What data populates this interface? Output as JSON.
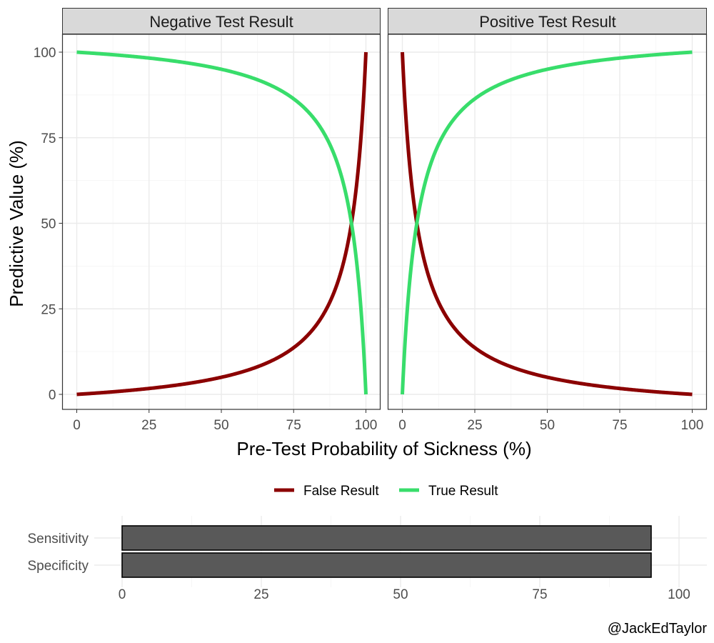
{
  "chart_data": [
    {
      "type": "line",
      "panels": [
        {
          "title": "Negative Test Result"
        },
        {
          "title": "Positive Test Result"
        }
      ],
      "xlabel": "Pre-Test Probability of Sickness (%)",
      "ylabel": "Predictive Value (%)",
      "xlim": [
        0,
        100
      ],
      "ylim": [
        0,
        100
      ],
      "x_ticks": [
        "0",
        "25",
        "50",
        "75",
        "100"
      ],
      "y_ticks": [
        "0",
        "25",
        "50",
        "75",
        "100"
      ],
      "grid": true,
      "sensitivity": 95,
      "specificity": 95,
      "series": [
        {
          "name": "False Result",
          "color": "#8b0000",
          "negative_test": {
            "x": [
              0,
              25,
              50,
              75,
              90,
              95,
              98,
              100
            ],
            "y": [
              0,
              1.7,
              5.0,
              13.6,
              32.1,
              50.0,
              72.1,
              100
            ]
          },
          "positive_test": {
            "x": [
              0,
              2,
              5,
              10,
              25,
              50,
              75,
              100
            ],
            "y": [
              100,
              72.1,
              50.0,
              32.1,
              13.6,
              5.0,
              1.7,
              0
            ]
          }
        },
        {
          "name": "True Result",
          "color": "#38dd6b",
          "negative_test": {
            "x": [
              0,
              25,
              50,
              75,
              90,
              95,
              98,
              100
            ],
            "y": [
              100,
              98.3,
              95.0,
              86.4,
              67.9,
              50.0,
              27.9,
              0
            ]
          },
          "positive_test": {
            "x": [
              0,
              2,
              5,
              10,
              25,
              50,
              75,
              100
            ],
            "y": [
              0,
              27.9,
              50.0,
              67.9,
              86.4,
              95.0,
              98.3,
              100
            ]
          }
        }
      ],
      "legend": {
        "position": "bottom",
        "entries": [
          "False Result",
          "True Result"
        ]
      }
    },
    {
      "type": "bar",
      "orientation": "horizontal",
      "categories": [
        "Sensitivity",
        "Specificity"
      ],
      "values": [
        95,
        95
      ],
      "xlim": [
        0,
        100
      ],
      "x_ticks": [
        "0",
        "25",
        "50",
        "75",
        "100"
      ],
      "bar_color": "#595959"
    }
  ],
  "credit": "@JackEdTaylor"
}
